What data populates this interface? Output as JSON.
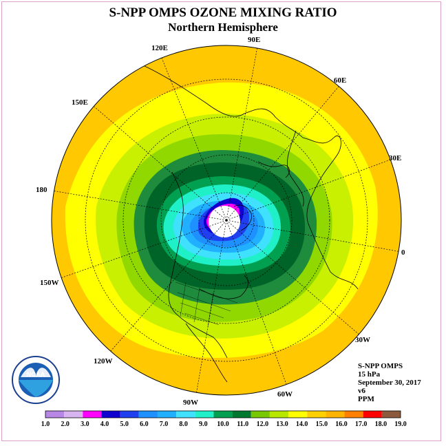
{
  "title": "S-NPP OMPS OZONE MIXING RATIO",
  "subtitle": "Northern Hemisphere",
  "longitude_labels": [
    "90E",
    "60E",
    "30E",
    "0",
    "30W",
    "60W",
    "90W",
    "120W",
    "150W",
    "180",
    "150E",
    "120E"
  ],
  "info": {
    "instrument": "S-NPP OMPS",
    "level": "15 hPa",
    "date": "September 30, 2017",
    "version": "v6",
    "units": "PPM"
  },
  "logo_text": "NOAA",
  "colorbar": {
    "ticks": [
      "1.0",
      "2.0",
      "3.0",
      "4.0",
      "5.0",
      "6.0",
      "7.0",
      "8.0",
      "9.0",
      "10.0",
      "11.0",
      "12.0",
      "13.0",
      "14.0",
      "15.0",
      "16.0",
      "17.0",
      "18.0",
      "19.0"
    ],
    "colors": [
      "#b887e6",
      "#d7b4ef",
      "#ff00ff",
      "#1000d0",
      "#2040f0",
      "#1e90ff",
      "#20b0ff",
      "#40e0ff",
      "#20f0c8",
      "#00a050",
      "#007830",
      "#78c800",
      "#b8e800",
      "#ffff00",
      "#ffd000",
      "#ffb400",
      "#ff8000",
      "#ff0000",
      "#8b5a3c"
    ]
  },
  "map_levels_ppm": [
    15.0,
    14.0,
    13.0,
    12.0,
    11.0,
    10.0,
    9.0,
    8.0,
    7.0,
    6.0,
    5.0,
    4.0,
    3.0
  ]
}
